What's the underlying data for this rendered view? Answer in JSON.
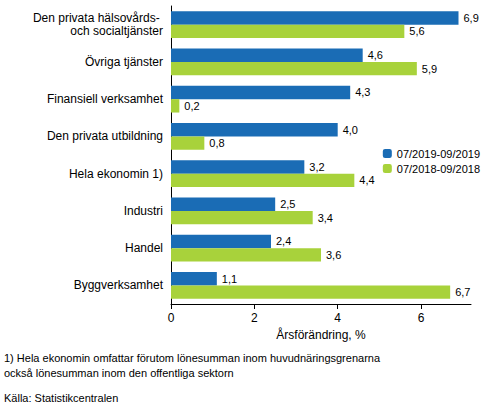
{
  "chart_data": {
    "type": "bar",
    "orientation": "horizontal",
    "categories": [
      "Den privata hälsovårds- och socialtjänster",
      "Övriga tjänster",
      "Finansiell verksamhet",
      "Den privata utbildning",
      "Hela ekonomin 1)",
      "Industri",
      "Handel",
      "Byggverksamhet"
    ],
    "series": [
      {
        "name": "07/2019-09/2019",
        "color": "#1a6cb5",
        "values": [
          6.9,
          4.6,
          4.3,
          4.0,
          3.2,
          2.5,
          2.4,
          1.1
        ],
        "value_labels": [
          "6,9",
          "4,6",
          "4,3",
          "4,0",
          "3,2",
          "2,5",
          "2,4",
          "1,1"
        ]
      },
      {
        "name": "07/2018-09/2018",
        "color": "#a8d23b",
        "values": [
          5.6,
          5.9,
          0.2,
          0.8,
          4.4,
          3.4,
          3.6,
          6.7
        ],
        "value_labels": [
          "5,6",
          "5,9",
          "0,2",
          "0,8",
          "4,4",
          "3,4",
          "3,6",
          "6,7"
        ]
      }
    ],
    "xlabel": "Årsförändring, %",
    "xlim": [
      0,
      7.2
    ],
    "xticks": [
      0,
      2,
      4,
      6
    ],
    "grid": false,
    "legend": "right",
    "data_labels": true,
    "annotations": [
      "1) Hela ekonomin omfattar förutom lönesumman inom huvudnäringsgrenarna också lönesumman inom den offentliga sektorn",
      "Källa: Statistikcentralen"
    ]
  }
}
